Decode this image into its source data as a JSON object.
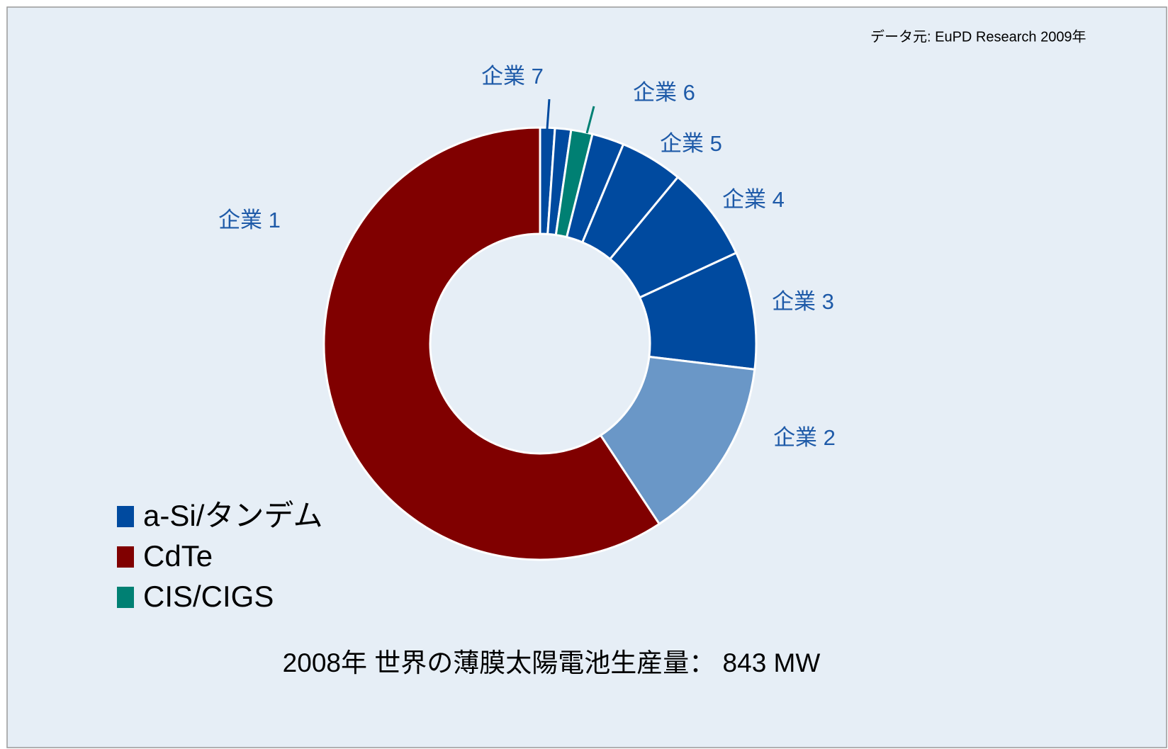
{
  "chart_data": {
    "type": "donut",
    "source": "データ元: EuPD Research 2009年",
    "title": "2008年 世界の薄膜太陽電池生産量： 843 MW",
    "categories": [
      "企業 7",
      null,
      "企業 6",
      null,
      "企業 5",
      "企業 4",
      "企業 3",
      "企業 2",
      "企業 1"
    ],
    "values": [
      1.1,
      1.2,
      1.6,
      2.4,
      4.7,
      7.1,
      8.8,
      13.8,
      59.3
    ],
    "colors": [
      "#004a9f",
      "#004a9f",
      "#008073",
      "#004a9f",
      "#004a9f",
      "#004a9f",
      "#004a9f",
      "#6a97c7",
      "#800000"
    ],
    "legend": [
      {
        "name": "a-Si/タンデム",
        "color": "#004a9f"
      },
      {
        "name": "CdTe",
        "color": "#800000"
      },
      {
        "name": "CIS/CIGS",
        "color": "#008073"
      }
    ]
  }
}
